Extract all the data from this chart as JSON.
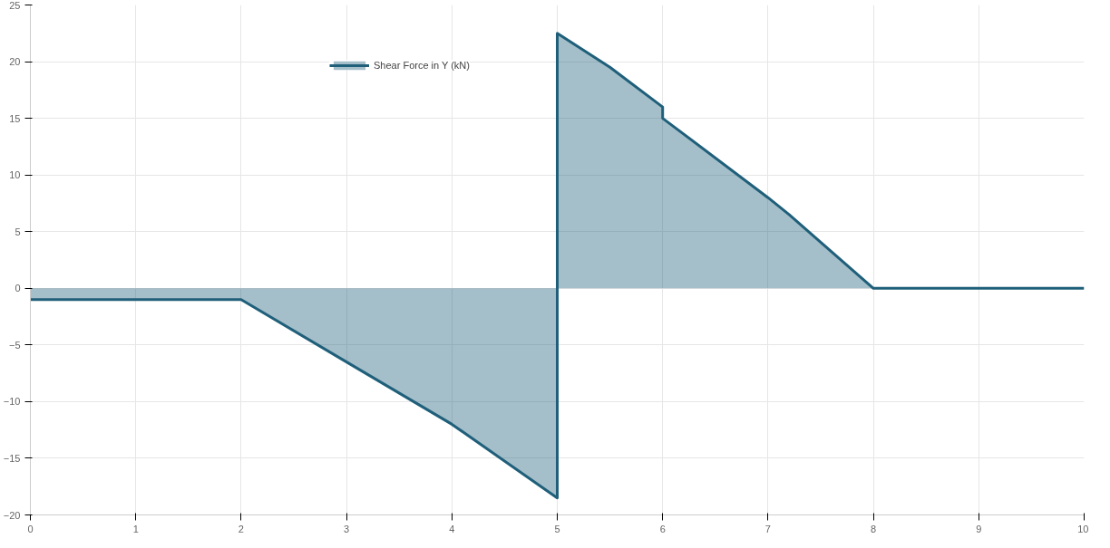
{
  "chart_data": {
    "type": "area",
    "x": [
      0,
      1,
      2,
      3,
      4,
      5,
      5,
      5.5,
      6,
      6,
      7,
      7.2,
      8,
      9,
      10
    ],
    "series": [
      {
        "name": "Shear Force in Y (kN)",
        "color": "#1f5f7a",
        "values": [
          -1,
          -1,
          -1,
          -6.5,
          -12,
          -18.5,
          22.5,
          19.5,
          16,
          15,
          8,
          6.5,
          0,
          0,
          0
        ]
      }
    ],
    "xlim": [
      0,
      10
    ],
    "ylim": [
      -20,
      25
    ],
    "xticks": [
      0,
      1,
      2,
      3,
      4,
      5,
      6,
      7,
      8,
      9,
      10
    ],
    "yticks": [
      -20,
      -15,
      -10,
      -5,
      0,
      5,
      10,
      15,
      20,
      25
    ],
    "grid": true,
    "legend": "top"
  }
}
